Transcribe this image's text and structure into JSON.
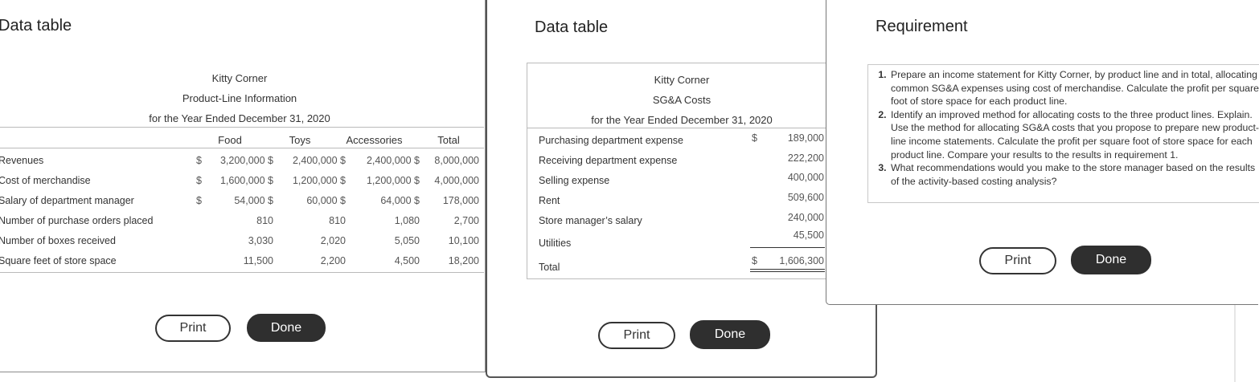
{
  "panel1": {
    "title": "Data table",
    "company": "Kitty Corner",
    "subtitle": "Product-Line Information",
    "period": "for the Year Ended December 31, 2020",
    "columns": [
      "Food",
      "Toys",
      "Accessories",
      "Total"
    ],
    "rows": [
      {
        "label": "Revenues",
        "dollar": "$",
        "cells": [
          "3,200,000 $",
          "2,400,000 $",
          "2,400,000 $",
          "8,000,000"
        ]
      },
      {
        "label": "Cost of merchandise",
        "dollar": "$",
        "cells": [
          "1,600,000 $",
          "1,200,000 $",
          "1,200,000 $",
          "4,000,000"
        ]
      },
      {
        "label": "Salary of department manager",
        "dollar": "$",
        "cells": [
          "54,000 $",
          "60,000 $",
          "64,000 $",
          "178,000"
        ]
      },
      {
        "label": "Number of purchase orders placed",
        "dollar": "",
        "cells": [
          "810",
          "810",
          "1,080",
          "2,700"
        ]
      },
      {
        "label": "Number of boxes received",
        "dollar": "",
        "cells": [
          "3,030",
          "2,020",
          "5,050",
          "10,100"
        ]
      },
      {
        "label": "Square feet of store space",
        "dollar": "",
        "cells": [
          "11,500",
          "2,200",
          "4,500",
          "18,200"
        ]
      }
    ],
    "print_label": "Print",
    "done_label": "Done"
  },
  "panel2": {
    "title": "Data table",
    "company": "Kitty Corner",
    "subtitle": "SG&A Costs",
    "period": "for the Year Ended December 31, 2020",
    "rows": [
      {
        "label": "Purchasing department expense",
        "dollar": "$",
        "value": "189,000"
      },
      {
        "label": "Receiving department expense",
        "dollar": "",
        "value": "222,200"
      },
      {
        "label": "Selling expense",
        "dollar": "",
        "value": "400,000"
      },
      {
        "label": "Rent",
        "dollar": "",
        "value": "509,600"
      },
      {
        "label": "Store manager’s salary",
        "dollar": "",
        "value": "240,000"
      },
      {
        "label": "Utilities",
        "dollar": "",
        "value": "45,500"
      }
    ],
    "total_label": "Total",
    "total_dollar": "$",
    "total_value": "1,606,300",
    "print_label": "Print",
    "done_label": "Done"
  },
  "panel3": {
    "title": "Requirement",
    "items": [
      "Prepare an income statement for Kitty Corner, by product line and in total, allocating common SG&A expenses using cost of merchandise. Calculate the profit per square foot of store space for each product line.",
      "Identify an improved method for allocating costs to the three product lines. Explain. Use the method for allocating SG&A costs that you propose to prepare new product-line income statements. Calculate the profit per square foot of store space for each product line. Compare your results to the results in requirement 1.",
      "What recommendations would you make to the store manager based on the results of the activity-based costing analysis?"
    ],
    "print_label": "Print",
    "done_label": "Done"
  }
}
